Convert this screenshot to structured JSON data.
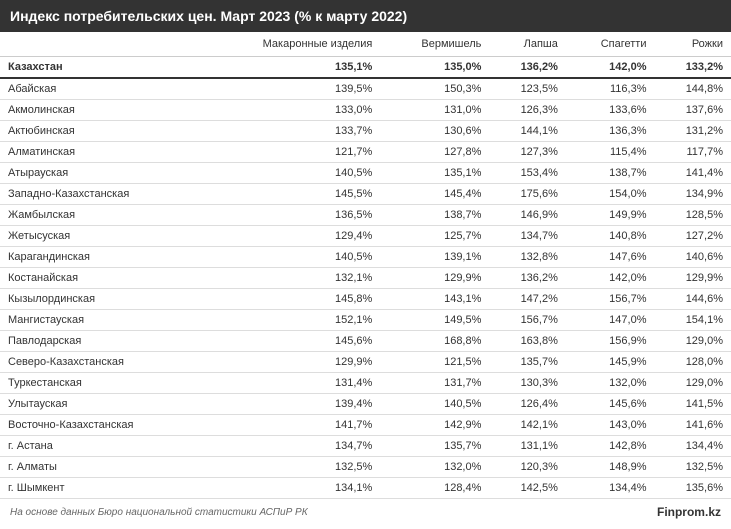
{
  "title": "Индекс потребительских цен. Март 2023 (% к марту 2022)",
  "columns": [
    "",
    "Макаронные изделия",
    "Вермишель",
    "Лапша",
    "Спагетти",
    "Рожки"
  ],
  "total_row": {
    "region": "Казахстан",
    "values": [
      "135,1%",
      "135,0%",
      "136,2%",
      "142,0%",
      "133,2%"
    ]
  },
  "rows": [
    {
      "region": "Абайская",
      "values": [
        "139,5%",
        "150,3%",
        "123,5%",
        "116,3%",
        "144,8%"
      ]
    },
    {
      "region": "Акмолинская",
      "values": [
        "133,0%",
        "131,0%",
        "126,3%",
        "133,6%",
        "137,6%"
      ]
    },
    {
      "region": "Актюбинская",
      "values": [
        "133,7%",
        "130,6%",
        "144,1%",
        "136,3%",
        "131,2%"
      ]
    },
    {
      "region": "Алматинская",
      "values": [
        "121,7%",
        "127,8%",
        "127,3%",
        "115,4%",
        "117,7%"
      ]
    },
    {
      "region": "Атырауская",
      "values": [
        "140,5%",
        "135,1%",
        "153,4%",
        "138,7%",
        "141,4%"
      ]
    },
    {
      "region": "Западно-Казахстанская",
      "values": [
        "145,5%",
        "145,4%",
        "175,6%",
        "154,0%",
        "134,9%"
      ]
    },
    {
      "region": "Жамбылская",
      "values": [
        "136,5%",
        "138,7%",
        "146,9%",
        "149,9%",
        "128,5%"
      ]
    },
    {
      "region": "Жетысуская",
      "values": [
        "129,4%",
        "125,7%",
        "134,7%",
        "140,8%",
        "127,2%"
      ]
    },
    {
      "region": "Карагандинская",
      "values": [
        "140,5%",
        "139,1%",
        "132,8%",
        "147,6%",
        "140,6%"
      ]
    },
    {
      "region": "Костанайская",
      "values": [
        "132,1%",
        "129,9%",
        "136,2%",
        "142,0%",
        "129,9%"
      ]
    },
    {
      "region": "Кызылординская",
      "values": [
        "145,8%",
        "143,1%",
        "147,2%",
        "156,7%",
        "144,6%"
      ]
    },
    {
      "region": "Мангистауская",
      "values": [
        "152,1%",
        "149,5%",
        "156,7%",
        "147,0%",
        "154,1%"
      ]
    },
    {
      "region": "Павлодарская",
      "values": [
        "145,6%",
        "168,8%",
        "163,8%",
        "156,9%",
        "129,0%"
      ]
    },
    {
      "region": "Северо-Казахстанская",
      "values": [
        "129,9%",
        "121,5%",
        "135,7%",
        "145,9%",
        "128,0%"
      ]
    },
    {
      "region": "Туркестанская",
      "values": [
        "131,4%",
        "131,7%",
        "130,3%",
        "132,0%",
        "129,0%"
      ]
    },
    {
      "region": "Улытауская",
      "values": [
        "139,4%",
        "140,5%",
        "126,4%",
        "145,6%",
        "141,5%"
      ]
    },
    {
      "region": "Восточно-Казахстанская",
      "values": [
        "141,7%",
        "142,9%",
        "142,1%",
        "143,0%",
        "141,6%"
      ]
    },
    {
      "region": "г. Астана",
      "values": [
        "134,7%",
        "135,7%",
        "131,1%",
        "142,8%",
        "134,4%"
      ]
    },
    {
      "region": "г. Алматы",
      "values": [
        "132,5%",
        "132,0%",
        "120,3%",
        "148,9%",
        "132,5%"
      ]
    },
    {
      "region": "г. Шымкент",
      "values": [
        "134,1%",
        "128,4%",
        "142,5%",
        "134,4%",
        "135,6%"
      ]
    }
  ],
  "footnote": "На основе данных Бюро национальной статистики АСПиР РК",
  "source": "Finprom.kz",
  "styling": {
    "header_bg": "#333333",
    "header_text": "#ffffff",
    "border_color": "#dddddd",
    "text_color": "#333333",
    "title_fontsize": 14,
    "cell_fontsize": 11,
    "footnote_fontsize": 10
  }
}
